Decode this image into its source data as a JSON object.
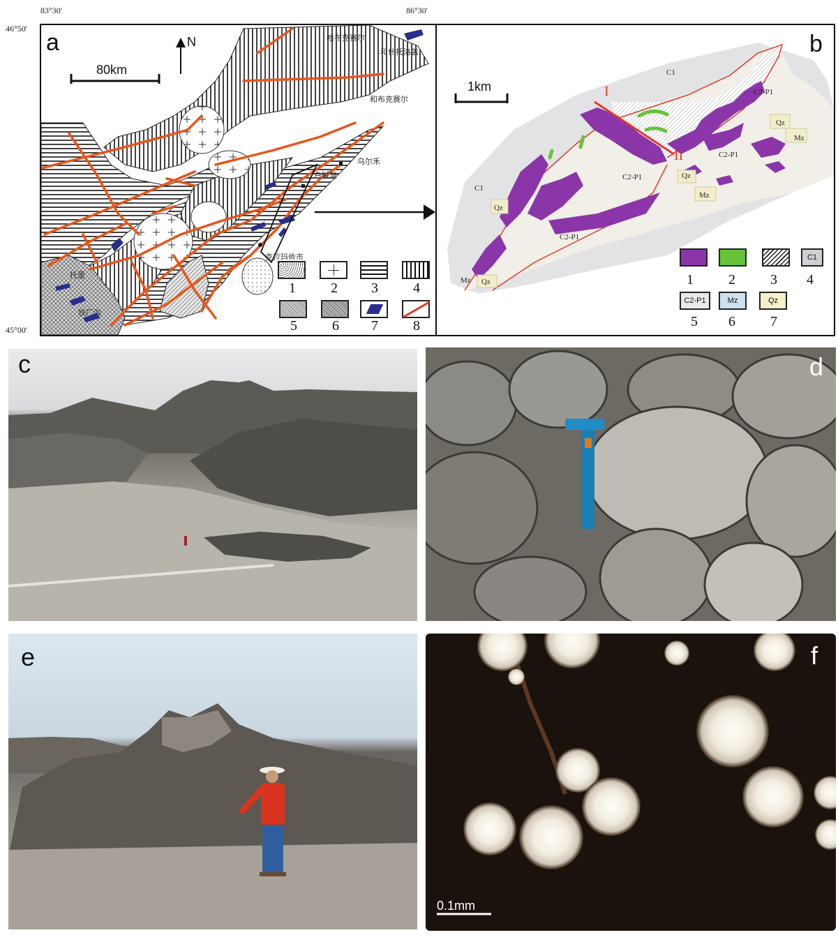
{
  "panel_a": {
    "label": "a",
    "coords": {
      "lon_left": "83°30'",
      "lon_right": "86°30'",
      "lat_top": "46°50'",
      "lat_bottom": "45°00'"
    },
    "scale": "80km",
    "north": "N",
    "places": [
      "哈布克赛尔",
      "和什托洛盖",
      "和布克赛尔",
      "乌尔禾",
      "白碱滩",
      "克拉玛依市",
      "托里",
      "铁厂沟"
    ],
    "legend": [
      "1",
      "2",
      "3",
      "4",
      "5",
      "6",
      "7",
      "8"
    ]
  },
  "panel_b": {
    "label": "b",
    "scale": "1km",
    "section": [
      "I",
      "II"
    ],
    "units": [
      "C1",
      "C2-P1",
      "Qz",
      "Mz"
    ],
    "legend_numbers": [
      "1",
      "2",
      "3",
      "4",
      "5",
      "6",
      "7"
    ],
    "legend_codes": [
      "C1",
      "C2-P1",
      "Mz",
      "Qz"
    ]
  },
  "panel_c": {
    "label": "c"
  },
  "panel_d": {
    "label": "d"
  },
  "panel_e": {
    "label": "e"
  },
  "panel_f": {
    "label": "f",
    "scale": "0.1mm"
  },
  "colors": {
    "fault": "#e8551c",
    "ophiolite": "#2a2d8c",
    "purple": "#8a36a8",
    "green": "#66c33a",
    "map_gray": "#d8d8dc",
    "boundary_red": "#e03a2a"
  }
}
